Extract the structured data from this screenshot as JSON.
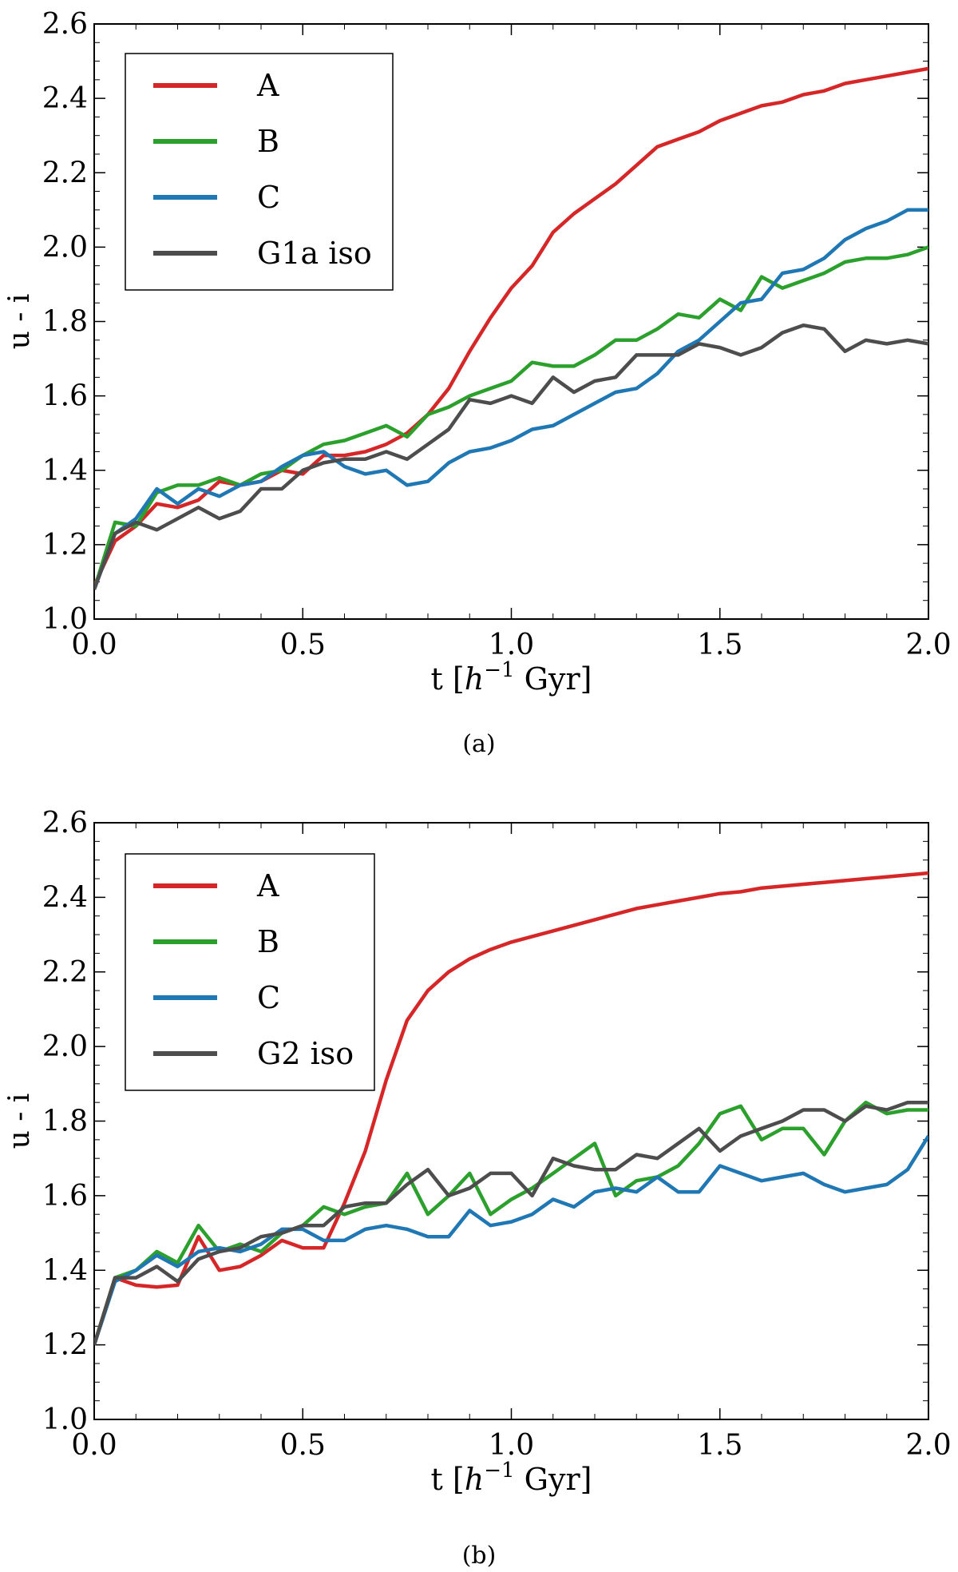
{
  "chart_data": [
    {
      "type": "line",
      "caption": "(a)",
      "xlabel": "t",
      "xlabel_unit": "h",
      "xlabel_unit_exp": "−1",
      "xlabel_unit_rest": "Gyr",
      "ylabel": "u - i",
      "xlim": [
        0.0,
        2.0
      ],
      "ylim": [
        1.0,
        2.6
      ],
      "xticks": [
        "0.0",
        "0.5",
        "1.0",
        "1.5",
        "2.0"
      ],
      "yticks": [
        "1.0",
        "1.2",
        "1.4",
        "1.6",
        "1.8",
        "2.0",
        "2.2",
        "2.4",
        "2.6"
      ],
      "legend_position": "top-left",
      "x": [
        0.0,
        0.05,
        0.1,
        0.15,
        0.2,
        0.25,
        0.3,
        0.35,
        0.4,
        0.45,
        0.5,
        0.55,
        0.6,
        0.65,
        0.7,
        0.75,
        0.8,
        0.85,
        0.9,
        0.95,
        1.0,
        1.05,
        1.1,
        1.15,
        1.2,
        1.25,
        1.3,
        1.35,
        1.4,
        1.45,
        1.5,
        1.55,
        1.6,
        1.65,
        1.7,
        1.75,
        1.8,
        1.85,
        1.9,
        1.95,
        2.0
      ],
      "series": [
        {
          "name": "A",
          "color": "#d62728",
          "values": [
            1.09,
            1.21,
            1.25,
            1.31,
            1.3,
            1.32,
            1.37,
            1.36,
            1.37,
            1.4,
            1.39,
            1.44,
            1.44,
            1.45,
            1.47,
            1.5,
            1.55,
            1.62,
            1.72,
            1.81,
            1.89,
            1.95,
            2.04,
            2.09,
            2.13,
            2.17,
            2.22,
            2.27,
            2.29,
            2.31,
            2.34,
            2.36,
            2.38,
            2.39,
            2.41,
            2.42,
            2.44,
            2.45,
            2.46,
            2.47,
            2.48
          ]
        },
        {
          "name": "B",
          "color": "#2ca02c",
          "values": [
            1.08,
            1.26,
            1.25,
            1.34,
            1.36,
            1.36,
            1.38,
            1.36,
            1.39,
            1.4,
            1.44,
            1.47,
            1.48,
            1.5,
            1.52,
            1.49,
            1.55,
            1.57,
            1.6,
            1.62,
            1.64,
            1.69,
            1.68,
            1.68,
            1.71,
            1.75,
            1.75,
            1.78,
            1.82,
            1.81,
            1.86,
            1.83,
            1.92,
            1.89,
            1.91,
            1.93,
            1.96,
            1.97,
            1.97,
            1.98,
            2.0
          ]
        },
        {
          "name": "C",
          "color": "#1f77b4",
          "values": [
            1.08,
            1.23,
            1.27,
            1.35,
            1.31,
            1.35,
            1.33,
            1.36,
            1.37,
            1.41,
            1.44,
            1.45,
            1.41,
            1.39,
            1.4,
            1.36,
            1.37,
            1.42,
            1.45,
            1.46,
            1.48,
            1.51,
            1.52,
            1.55,
            1.58,
            1.61,
            1.62,
            1.66,
            1.72,
            1.75,
            1.8,
            1.85,
            1.86,
            1.93,
            1.94,
            1.97,
            2.02,
            2.05,
            2.07,
            2.1,
            2.1
          ]
        },
        {
          "name": "G1a iso",
          "color": "#4d4d4d",
          "values": [
            1.08,
            1.23,
            1.26,
            1.24,
            1.27,
            1.3,
            1.27,
            1.29,
            1.35,
            1.35,
            1.4,
            1.42,
            1.43,
            1.43,
            1.45,
            1.43,
            1.47,
            1.51,
            1.59,
            1.58,
            1.6,
            1.58,
            1.65,
            1.61,
            1.64,
            1.65,
            1.71,
            1.71,
            1.71,
            1.74,
            1.73,
            1.71,
            1.73,
            1.77,
            1.79,
            1.78,
            1.72,
            1.75,
            1.74,
            1.75,
            1.74
          ]
        }
      ]
    },
    {
      "type": "line",
      "caption": "(b)",
      "xlabel": "t",
      "xlabel_unit": "h",
      "xlabel_unit_exp": "−1",
      "xlabel_unit_rest": "Gyr",
      "ylabel": "u - i",
      "xlim": [
        0.0,
        2.0
      ],
      "ylim": [
        1.0,
        2.6
      ],
      "xticks": [
        "0.0",
        "0.5",
        "1.0",
        "1.5",
        "2.0"
      ],
      "yticks": [
        "1.0",
        "1.2",
        "1.4",
        "1.6",
        "1.8",
        "2.0",
        "2.2",
        "2.4",
        "2.6"
      ],
      "legend_position": "top-left",
      "x": [
        0.0,
        0.05,
        0.1,
        0.15,
        0.2,
        0.25,
        0.3,
        0.35,
        0.4,
        0.45,
        0.5,
        0.55,
        0.6,
        0.65,
        0.7,
        0.75,
        0.8,
        0.85,
        0.9,
        0.95,
        1.0,
        1.05,
        1.1,
        1.15,
        1.2,
        1.25,
        1.3,
        1.35,
        1.4,
        1.45,
        1.5,
        1.55,
        1.6,
        1.65,
        1.7,
        1.75,
        1.8,
        1.85,
        1.9,
        1.95,
        2.0
      ],
      "series": [
        {
          "name": "A",
          "color": "#d62728",
          "values": [
            1.2,
            1.38,
            1.36,
            1.355,
            1.36,
            1.49,
            1.4,
            1.41,
            1.44,
            1.48,
            1.46,
            1.46,
            1.58,
            1.72,
            1.91,
            2.07,
            2.15,
            2.2,
            2.235,
            2.26,
            2.28,
            2.295,
            2.31,
            2.325,
            2.34,
            2.355,
            2.37,
            2.38,
            2.39,
            2.4,
            2.41,
            2.415,
            2.425,
            2.43,
            2.435,
            2.44,
            2.445,
            2.45,
            2.455,
            2.46,
            2.465
          ]
        },
        {
          "name": "B",
          "color": "#2ca02c",
          "values": [
            1.2,
            1.38,
            1.4,
            1.45,
            1.42,
            1.52,
            1.45,
            1.47,
            1.45,
            1.5,
            1.52,
            1.57,
            1.55,
            1.57,
            1.58,
            1.66,
            1.55,
            1.6,
            1.66,
            1.55,
            1.59,
            1.62,
            1.66,
            1.7,
            1.74,
            1.6,
            1.64,
            1.65,
            1.68,
            1.74,
            1.82,
            1.84,
            1.75,
            1.78,
            1.78,
            1.71,
            1.8,
            1.85,
            1.82,
            1.83,
            1.83
          ]
        },
        {
          "name": "C",
          "color": "#1f77b4",
          "values": [
            1.2,
            1.37,
            1.4,
            1.44,
            1.41,
            1.45,
            1.46,
            1.45,
            1.47,
            1.51,
            1.51,
            1.48,
            1.48,
            1.51,
            1.52,
            1.51,
            1.49,
            1.49,
            1.56,
            1.52,
            1.53,
            1.55,
            1.59,
            1.57,
            1.61,
            1.62,
            1.61,
            1.65,
            1.61,
            1.61,
            1.68,
            1.66,
            1.64,
            1.65,
            1.66,
            1.63,
            1.61,
            1.62,
            1.63,
            1.67,
            1.76
          ]
        },
        {
          "name": "G2 iso",
          "color": "#4d4d4d",
          "values": [
            1.2,
            1.38,
            1.38,
            1.41,
            1.37,
            1.43,
            1.45,
            1.46,
            1.49,
            1.5,
            1.52,
            1.52,
            1.57,
            1.58,
            1.58,
            1.63,
            1.67,
            1.6,
            1.62,
            1.66,
            1.66,
            1.6,
            1.7,
            1.68,
            1.67,
            1.67,
            1.71,
            1.7,
            1.74,
            1.78,
            1.72,
            1.76,
            1.78,
            1.8,
            1.83,
            1.83,
            1.8,
            1.84,
            1.83,
            1.85,
            1.85
          ]
        }
      ]
    }
  ]
}
